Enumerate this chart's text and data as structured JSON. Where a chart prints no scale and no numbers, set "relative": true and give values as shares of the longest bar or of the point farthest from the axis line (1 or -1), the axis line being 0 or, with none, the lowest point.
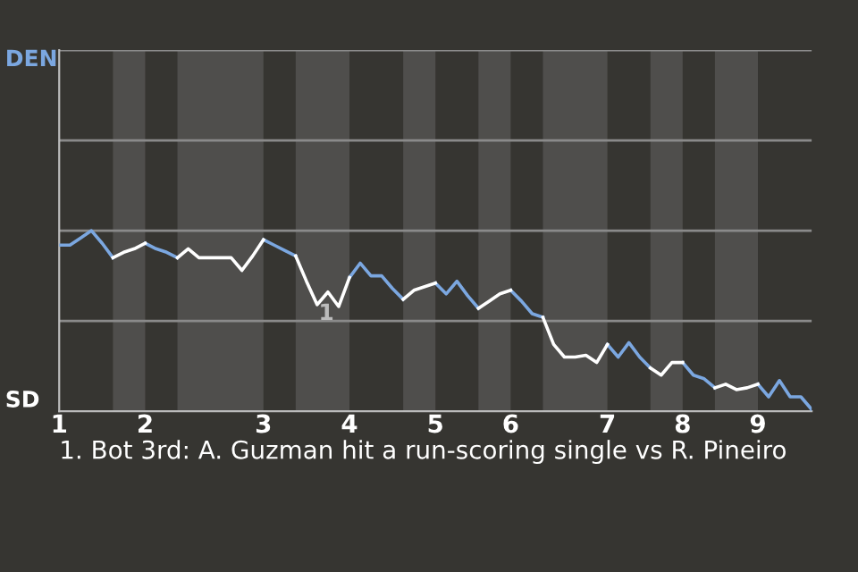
{
  "chart_data": {
    "type": "line",
    "relative": true,
    "tick_labels": "x",
    "ref_lines": [
      {
        "axis": "y",
        "value": 0.5,
        "color": "#8a8a8a"
      },
      {
        "axis": "y",
        "value": 1.0,
        "color": "#8a8a8a"
      },
      {
        "axis": "y",
        "value": 1.5,
        "color": "#8a8a8a"
      },
      {
        "axis": "y",
        "value": 2.0,
        "color": "#8a8a8a"
      }
    ],
    "marker": "none",
    "line_style": "solid",
    "legend": false,
    "categories": [
      "1",
      null,
      null,
      null,
      null,
      null,
      null,
      null,
      "2",
      null,
      null,
      null,
      null,
      null,
      null,
      null,
      null,
      null,
      null,
      "3",
      null,
      null,
      null,
      null,
      null,
      null,
      null,
      "4",
      null,
      null,
      null,
      null,
      null,
      null,
      null,
      "5",
      null,
      null,
      null,
      null,
      null,
      null,
      "6",
      null,
      null,
      null,
      null,
      null,
      null,
      null,
      null,
      "7",
      null,
      null,
      null,
      null,
      null,
      null,
      "8",
      null,
      null,
      null,
      null,
      null,
      null,
      "9",
      null,
      null,
      null,
      null,
      null
    ],
    "series": [
      {
        "name": "DEN",
        "color": "#7ba7e0",
        "values": [
          0.92,
          0.92,
          0.96,
          1.0,
          0.93,
          0.85,
          null,
          null,
          0.93,
          0.9,
          0.88,
          0.85,
          null,
          null,
          null,
          null,
          null,
          null,
          null,
          0.95,
          0.92,
          0.89,
          0.86,
          null,
          null,
          null,
          null,
          0.74,
          0.82,
          0.75,
          0.75,
          0.68,
          0.62,
          null,
          null,
          0.71,
          0.65,
          0.72,
          0.64,
          0.57,
          null,
          null,
          0.67,
          0.61,
          0.54,
          0.52,
          null,
          null,
          null,
          null,
          null,
          0.37,
          0.3,
          0.38,
          0.3,
          0.24,
          null,
          null,
          0.27,
          0.2,
          0.18,
          0.13,
          null,
          null,
          null,
          0.15,
          0.08,
          0.17,
          0.08,
          0.08,
          0.01
        ]
      },
      {
        "name": "SD",
        "color": "#ffffff",
        "values": [
          null,
          null,
          null,
          null,
          null,
          0.85,
          0.88,
          0.9,
          0.93,
          null,
          null,
          0.85,
          0.9,
          0.85,
          0.85,
          0.85,
          0.85,
          0.78,
          0.86,
          0.95,
          null,
          null,
          0.86,
          0.72,
          0.59,
          0.66,
          0.58,
          0.74,
          null,
          null,
          null,
          null,
          0.62,
          0.67,
          0.69,
          0.71,
          null,
          null,
          null,
          0.57,
          0.61,
          0.65,
          0.67,
          null,
          null,
          0.52,
          0.37,
          0.3,
          0.3,
          0.31,
          0.27,
          0.37,
          null,
          null,
          null,
          0.24,
          0.2,
          0.27,
          0.27,
          null,
          null,
          0.13,
          0.15,
          0.12,
          0.13,
          0.15,
          null,
          null,
          null,
          null,
          null
        ]
      }
    ],
    "annotations": [
      {
        "text": "1"
      },
      "1. Bot 3rd: A. Guzman hit a run-scoring single vs R. Pineiro"
    ]
  }
}
